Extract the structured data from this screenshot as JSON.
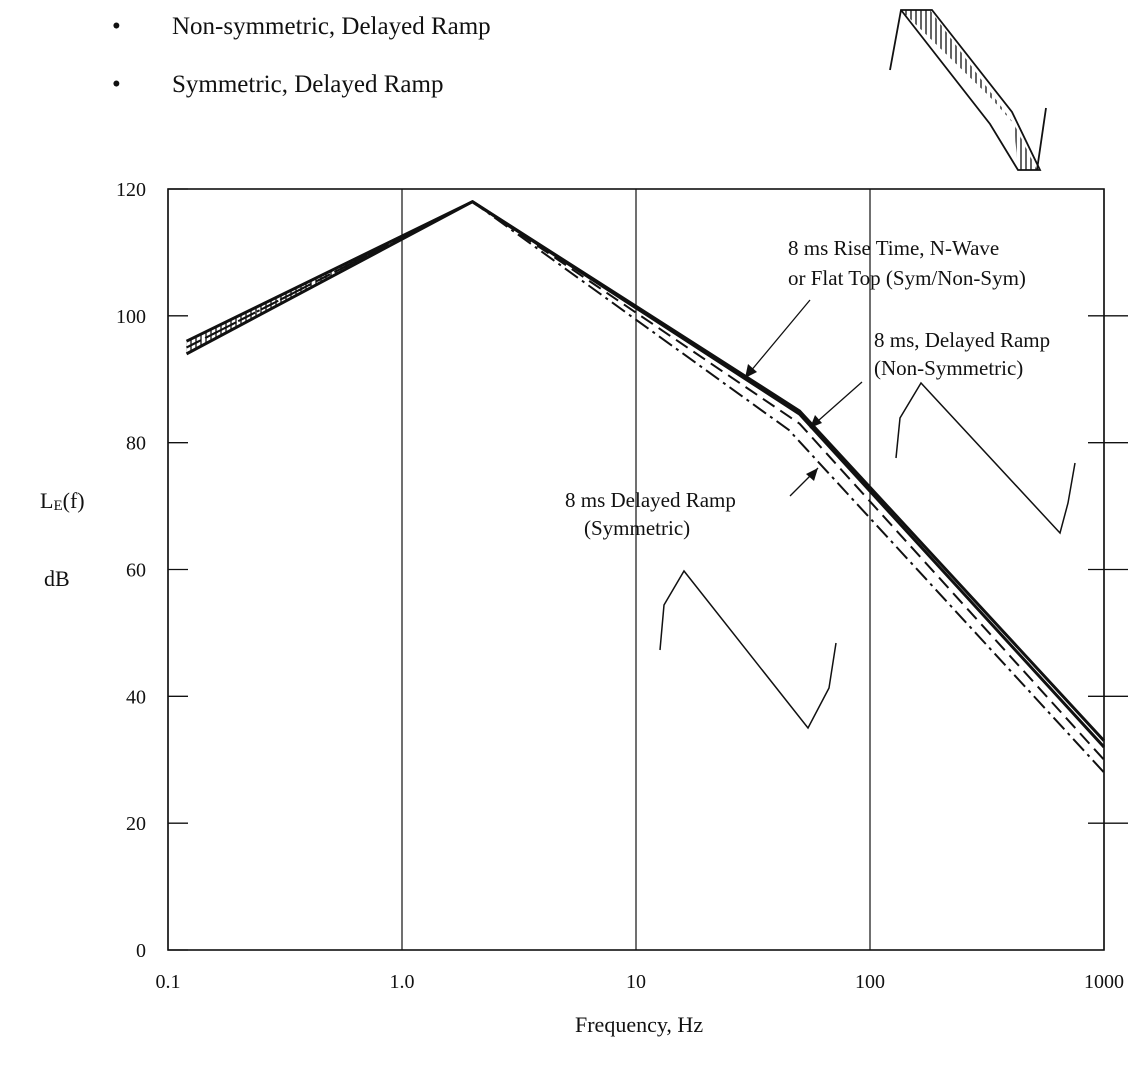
{
  "bullets": [
    "Non-symmetric, Delayed Ramp",
    "Symmetric, Delayed Ramp"
  ],
  "chart_data": {
    "type": "line",
    "xscale": "log",
    "xlim": [
      0.1,
      1000
    ],
    "ylim": [
      0,
      120
    ],
    "xticks": [
      0.1,
      1.0,
      10,
      100,
      1000
    ],
    "xtick_labels": [
      "0.1",
      "1.0",
      "10",
      "100",
      "1000"
    ],
    "yticks": [
      0,
      20,
      40,
      60,
      80,
      100,
      120
    ],
    "ytick_labels": [
      "0",
      "20",
      "40",
      "60",
      "80",
      "100",
      "120"
    ],
    "xlabel": "Frequency, Hz",
    "ylabel": "dB",
    "ylabel_main": "L",
    "ylabel_sub": "E",
    "ylabel_tail": "(f)",
    "grid": "vertical lines at decades",
    "series": [
      {
        "style": "solid-thick",
        "x": [
          0.12,
          2.0,
          50,
          1000
        ],
        "y": [
          96,
          118,
          85,
          33
        ]
      },
      {
        "style": "solid-thick",
        "x": [
          0.12,
          2.0,
          50,
          1000
        ],
        "y": [
          94,
          118,
          84.5,
          32
        ]
      },
      {
        "style": "dash",
        "x": [
          0.12,
          2.0,
          50,
          1000
        ],
        "y": [
          95,
          118,
          83,
          30
        ]
      },
      {
        "style": "dash-dot",
        "x": [
          0.12,
          2.0,
          45,
          1000
        ],
        "y": [
          95,
          118,
          82,
          28
        ]
      }
    ],
    "annotations": [
      {
        "lines": [
          "8 ms Rise Time, N-Wave",
          "or Flat Top (Sym/Non-Sym)"
        ]
      },
      {
        "lines": [
          "8 ms, Delayed Ramp",
          "(Non-Symmetric)"
        ]
      },
      {
        "lines": [
          "8 ms Delayed Ramp",
          "(Symmetric)"
        ]
      }
    ]
  }
}
